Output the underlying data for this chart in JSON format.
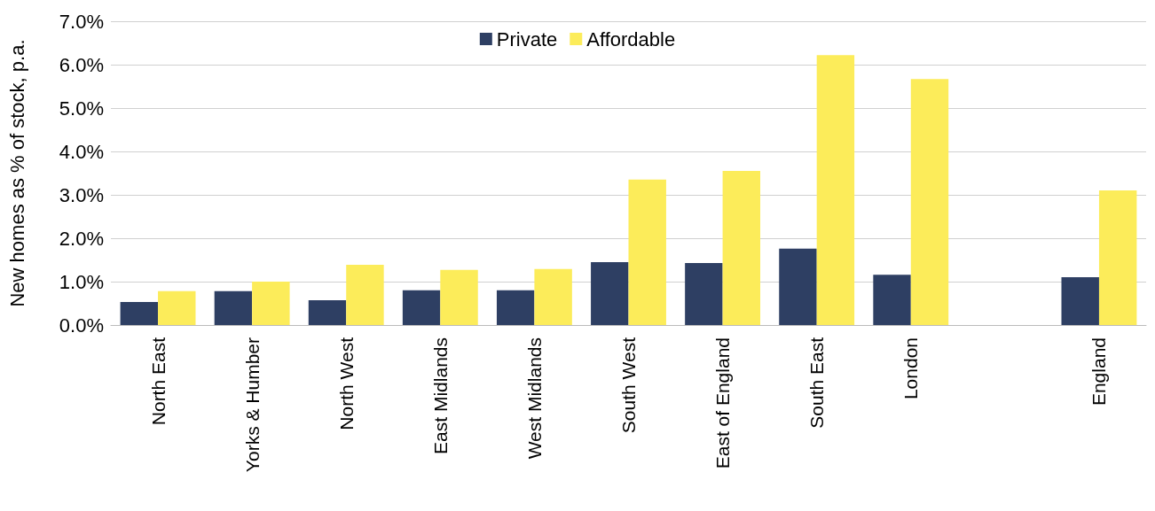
{
  "chart_data": {
    "type": "bar",
    "ylabel": "New homes as % of stock, p.a.",
    "categories": [
      "North East",
      "Yorks & Humber",
      "North West",
      "East Midlands",
      "West Midlands",
      "South West",
      "East of England",
      "South East",
      "London",
      null,
      "England"
    ],
    "series": [
      {
        "name": "Private",
        "color": "#2e3f63",
        "values": [
          0.53,
          0.78,
          0.57,
          0.8,
          0.8,
          1.45,
          1.43,
          1.76,
          1.16,
          null,
          1.1
        ]
      },
      {
        "name": "Affordable",
        "color": "#fcec5a",
        "values": [
          0.78,
          1.0,
          1.39,
          1.27,
          1.29,
          3.35,
          3.55,
          6.22,
          5.67,
          null,
          3.1
        ]
      }
    ],
    "ylim": [
      0,
      7
    ],
    "yticks": [
      {
        "value": 0,
        "label": "0.0%"
      },
      {
        "value": 1,
        "label": "1.0%"
      },
      {
        "value": 2,
        "label": "2.0%"
      },
      {
        "value": 3,
        "label": "3.0%"
      },
      {
        "value": 4,
        "label": "4.0%"
      },
      {
        "value": 5,
        "label": "5.0%"
      },
      {
        "value": 6,
        "label": "6.0%"
      },
      {
        "value": 7,
        "label": "7.0%"
      }
    ],
    "grid": "y",
    "legend": "top"
  }
}
